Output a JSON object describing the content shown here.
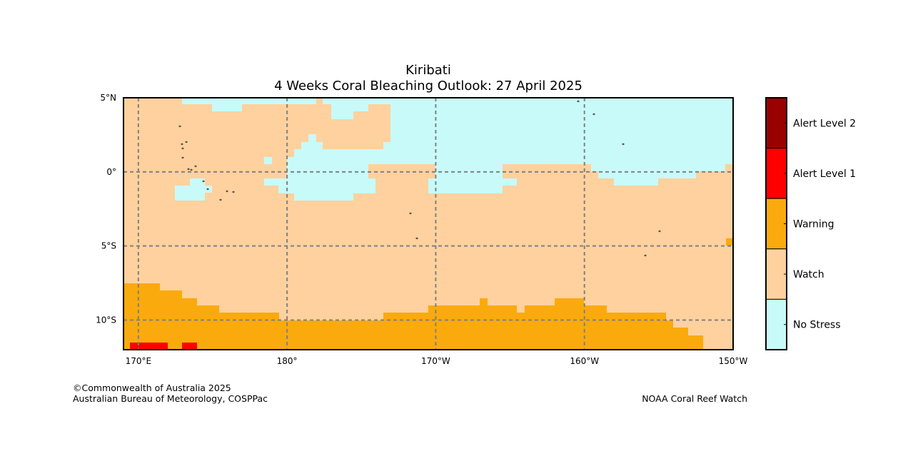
{
  "title": "Kiribati",
  "subtitle": "4 Weeks Coral Bleaching Outlook: 27 April 2025",
  "credits": {
    "left_line1": "©Commonwealth of Australia 2025",
    "left_line2": "Australian Bureau of Meteorology, COSPPac",
    "right": "NOAA Coral Reef Watch"
  },
  "map": {
    "lon_range": [
      169,
      210
    ],
    "lat_range": [
      -12,
      5
    ],
    "x_ticks": [
      {
        "lon": 170,
        "label": "170°E"
      },
      {
        "lon": 180,
        "label": "180°"
      },
      {
        "lon": 190,
        "label": "170°W"
      },
      {
        "lon": 200,
        "label": "160°W"
      },
      {
        "lon": 210,
        "label": "150°W"
      }
    ],
    "y_ticks": [
      {
        "lat": 5,
        "label": "5°N"
      },
      {
        "lat": 0,
        "label": "0°"
      },
      {
        "lat": -5,
        "label": "5°S"
      },
      {
        "lat": -10,
        "label": "10°S"
      }
    ],
    "grid": true
  },
  "legend": {
    "items": [
      {
        "label": "Alert Level 2",
        "color": "#990000"
      },
      {
        "label": "Alert Level 1",
        "color": "#ff0000"
      },
      {
        "label": "Warning",
        "color": "#faaa0c"
      },
      {
        "label": "Watch",
        "color": "#ffd19e"
      },
      {
        "label": "No Stress",
        "color": "#c8fafa"
      }
    ]
  },
  "colors": {
    "watch": "#ffd19e",
    "nostress": "#c8fafa",
    "warning": "#faaa0c",
    "alert1": "#ff0000",
    "alert2": "#990000",
    "land": "#555555"
  }
}
